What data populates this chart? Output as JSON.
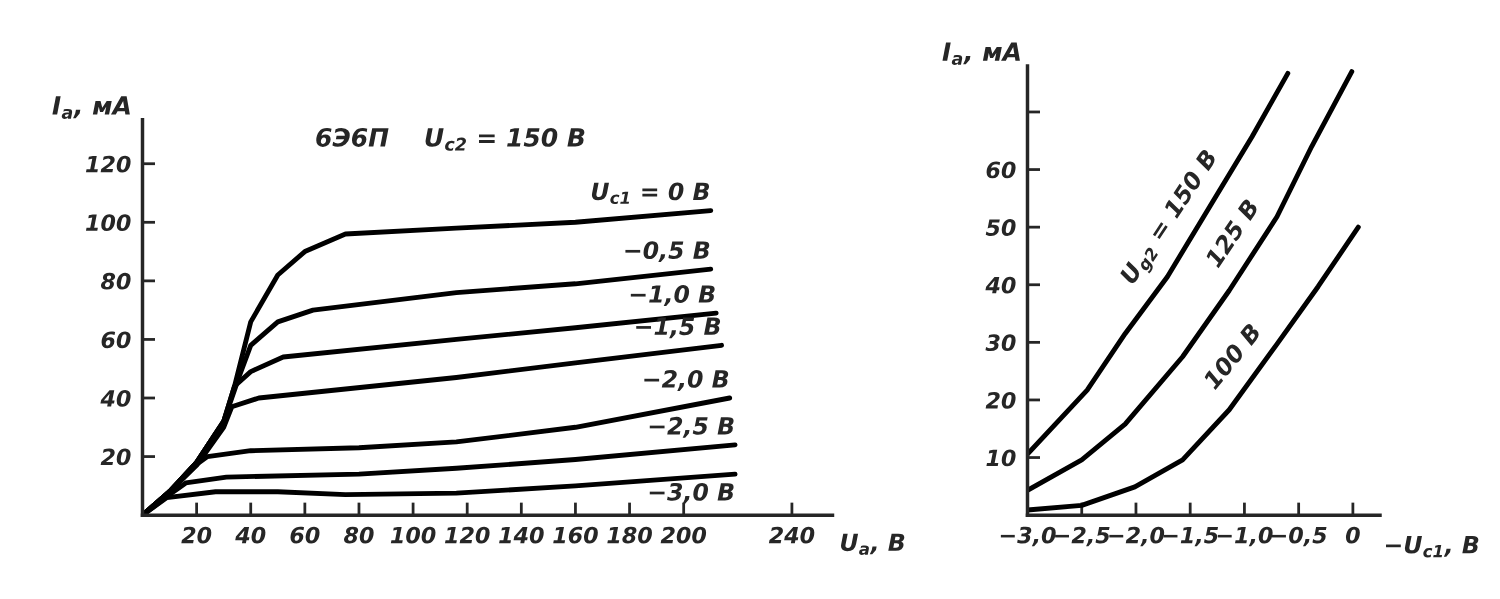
{
  "chart_data": [
    {
      "type": "line",
      "ylabel": "I$_{a}$, мА",
      "xlabel": "U$_{a}$, В",
      "annotations": [
        "6Э6П    U$_{c2}$ = 150 В"
      ],
      "xlim": [
        0,
        255
      ],
      "ylim": [
        0,
        135
      ],
      "xticks": [
        20,
        40,
        60,
        80,
        100,
        120,
        140,
        160,
        180,
        200,
        240
      ],
      "yticks": [
        20,
        40,
        60,
        80,
        100,
        120
      ],
      "grid": false,
      "legend": false,
      "marker": "none",
      "line_style": "solid",
      "series": [
        {
          "name": "U$_{c1}$ = 0 В",
          "color": "#000000",
          "x": [
            0,
            10,
            20,
            30,
            34,
            40,
            50,
            60,
            75,
            116,
            160,
            210
          ],
          "values": [
            0,
            8,
            18,
            32,
            44,
            66,
            82,
            90,
            96,
            98,
            100,
            104
          ]
        },
        {
          "name": "−0,5 В",
          "color": "#000000",
          "x": [
            0,
            10,
            20,
            30,
            36,
            40,
            50,
            63,
            116,
            160,
            210
          ],
          "values": [
            0,
            8,
            18,
            32,
            48,
            58,
            66,
            70,
            76,
            79,
            84
          ]
        },
        {
          "name": "−1,0 В",
          "color": "#000000",
          "x": [
            0,
            10,
            20,
            30,
            34,
            40,
            52,
            116,
            160,
            212
          ],
          "values": [
            0,
            8,
            18,
            32,
            44,
            49,
            54,
            60,
            64,
            69
          ]
        },
        {
          "name": "−1,5 В",
          "color": "#000000",
          "x": [
            0,
            10,
            20,
            30,
            33,
            43,
            116,
            160,
            214
          ],
          "values": [
            0,
            8,
            17,
            30,
            37,
            40,
            47,
            52,
            58
          ]
        },
        {
          "name": "−2,0 В",
          "color": "#000000",
          "x": [
            0,
            10,
            18,
            24,
            40,
            80,
            116,
            160,
            217
          ],
          "values": [
            0,
            8,
            16,
            20,
            22,
            23,
            25,
            30,
            40
          ]
        },
        {
          "name": "−2,5 В",
          "color": "#000000",
          "x": [
            0,
            10,
            16,
            31,
            80,
            116,
            160,
            219
          ],
          "values": [
            0,
            7,
            11,
            13,
            14,
            16,
            19,
            24
          ]
        },
        {
          "name": "−3,0 В",
          "color": "#000000",
          "x": [
            0,
            9,
            27,
            50,
            75,
            116,
            160,
            219
          ],
          "values": [
            0,
            6,
            8,
            8,
            7,
            7.5,
            10,
            14
          ]
        }
      ]
    },
    {
      "type": "line",
      "ylabel": "I$_{a}$, мА",
      "xlabel": "−U$_{c1}$, В",
      "xlim": [
        -3.0,
        0.25
      ],
      "ylim": [
        0,
        78
      ],
      "xticks": [
        {
          "value": -3.0,
          "label": "−3,0"
        },
        {
          "value": -2.5,
          "label": "−2,5"
        },
        {
          "value": -2.0,
          "label": "−2,0"
        },
        {
          "value": -1.5,
          "label": "−1,5"
        },
        {
          "value": -1.0,
          "label": "−1,0"
        },
        {
          "value": -0.5,
          "label": "−0,5"
        },
        0
      ],
      "yticks": [
        10,
        20,
        30,
        40,
        50,
        60,
        {
          "value": 70,
          "label": null
        }
      ],
      "grid": false,
      "legend": false,
      "marker": "none",
      "line_style": "solid",
      "series": [
        {
          "name": "U$_{g2}$ = 150 В",
          "color": "#000000",
          "x": [
            -3.0,
            -2.45,
            -2.1,
            -1.71,
            -1.28,
            -0.93,
            -0.6
          ],
          "values": [
            10.6,
            21.7,
            31.5,
            41.4,
            54.8,
            65.7,
            76.7
          ]
        },
        {
          "name": "125 В",
          "color": "#000000",
          "x": [
            -3.0,
            -2.5,
            -2.1,
            -1.57,
            -1.14,
            -0.7,
            -0.38,
            -0.01
          ],
          "values": [
            4.3,
            9.6,
            15.8,
            27.5,
            39,
            51.8,
            64,
            77
          ]
        },
        {
          "name": "100 В",
          "color": "#000000",
          "x": [
            -3.0,
            -2.5,
            -2.01,
            -1.57,
            -1.14,
            -0.7,
            -0.32,
            0.05
          ],
          "values": [
            0.9,
            1.7,
            4.9,
            9.6,
            18.3,
            29.7,
            39.7,
            50
          ]
        }
      ]
    }
  ]
}
